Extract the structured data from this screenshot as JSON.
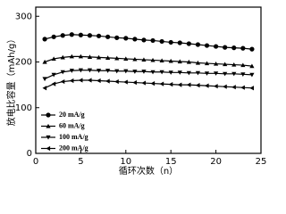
{
  "chart_data": {
    "type": "line",
    "xlabel": "循环次数（n）",
    "ylabel": "放电比容量（mAh/g）",
    "x": [
      1,
      2,
      3,
      4,
      5,
      6,
      7,
      8,
      9,
      10,
      11,
      12,
      13,
      14,
      15,
      16,
      17,
      18,
      19,
      20,
      21,
      22,
      23,
      24
    ],
    "series": [
      {
        "name": "20 mA/g",
        "color": "#000000",
        "marker": "circle",
        "values": [
          250,
          255,
          258,
          260,
          259,
          258,
          257,
          255,
          253,
          252,
          250,
          248,
          247,
          245,
          243,
          242,
          240,
          238,
          236,
          234,
          232,
          231,
          230,
          228
        ]
      },
      {
        "name": "60 mA/g",
        "color": "#000000",
        "marker": "triangle-up",
        "values": [
          200,
          207,
          210,
          212,
          212,
          211,
          210,
          209,
          208,
          207,
          206,
          205,
          204,
          203,
          202,
          201,
          200,
          198,
          197,
          196,
          195,
          194,
          193,
          191
        ]
      },
      {
        "name": "100 mA/g",
        "color": "#000000",
        "marker": "triangle-down",
        "values": [
          163,
          172,
          178,
          181,
          182,
          182,
          181,
          181,
          180,
          180,
          179,
          179,
          178,
          178,
          177,
          177,
          176,
          176,
          175,
          175,
          174,
          174,
          173,
          172
        ]
      },
      {
        "name": "200 mA/g",
        "color": "#000000",
        "marker": "triangle-left",
        "values": [
          143,
          152,
          157,
          159,
          160,
          160,
          159,
          158,
          157,
          156,
          155,
          154,
          153,
          152,
          151,
          150,
          150,
          149,
          148,
          147,
          146,
          145,
          144,
          143
        ]
      }
    ],
    "xlim": [
      0,
      25
    ],
    "xticks": [
      0,
      5,
      10,
      15,
      20,
      25
    ],
    "ylim": [
      0,
      320
    ],
    "yticks": [
      0,
      100,
      200,
      300
    ],
    "legend": "lower-left"
  }
}
